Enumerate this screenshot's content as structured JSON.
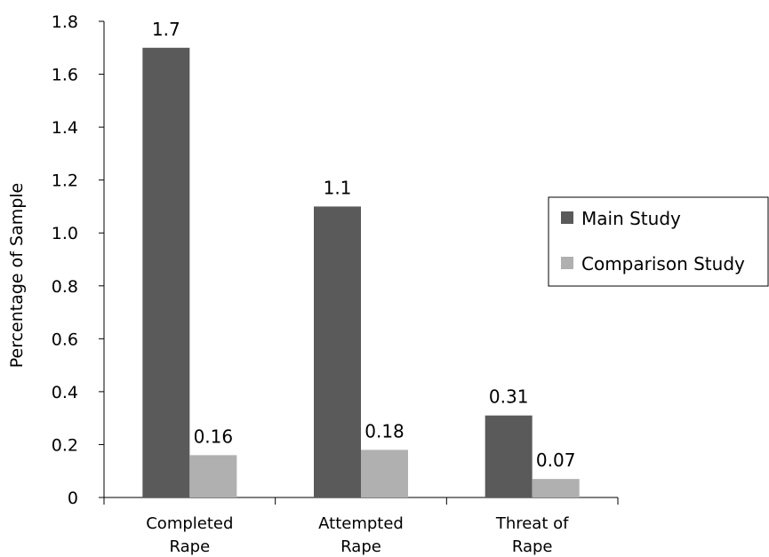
{
  "chart_data": {
    "type": "bar",
    "title": "",
    "xlabel": "",
    "ylabel": "Percentage of Sample",
    "ylim": [
      0,
      1.8
    ],
    "yticks": [
      "0",
      "0.2",
      "0.4",
      "0.6",
      "0.8",
      "1.0",
      "1.2",
      "1.4",
      "1.6",
      "1.8"
    ],
    "categories": [
      [
        "Completed",
        "Rape"
      ],
      [
        "Attempted",
        "Rape"
      ],
      [
        "Threat of",
        "Rape"
      ]
    ],
    "series": [
      {
        "name": "Main Study",
        "values": [
          1.7,
          1.1,
          0.31
        ],
        "labels": [
          "1.7",
          "1.1",
          "0.31"
        ],
        "color": "#5a5a5a"
      },
      {
        "name": "Comparison Study",
        "values": [
          0.16,
          0.18,
          0.07
        ],
        "labels": [
          "0.16",
          "0.18",
          "0.07"
        ],
        "color": "#b0b0b0"
      }
    ],
    "grid": false,
    "legend_position": "right"
  }
}
